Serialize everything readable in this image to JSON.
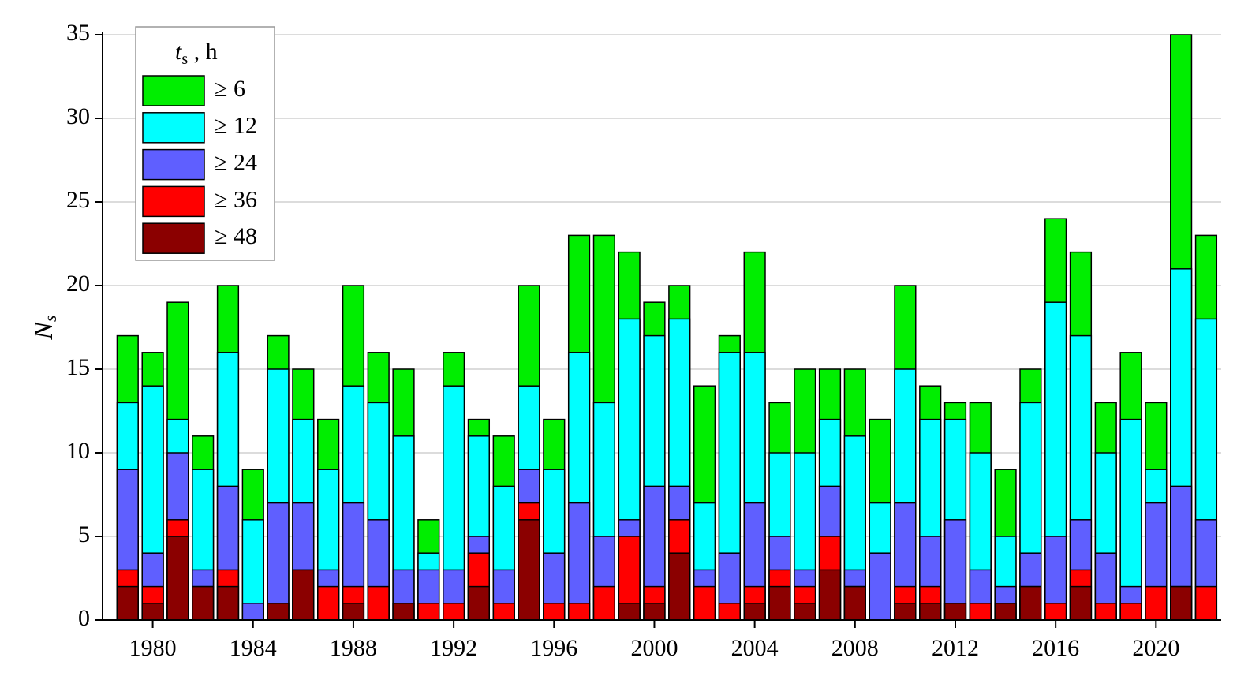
{
  "chart_data": {
    "type": "overlapping_bar",
    "y_label": {
      "symbol": "N",
      "subscript": "s"
    },
    "legend_title": {
      "symbol": "t",
      "subscript": "s",
      "unit": " , h"
    },
    "legend": "upper left",
    "grid": true,
    "x": [
      1979,
      1980,
      1981,
      1982,
      1983,
      1984,
      1985,
      1986,
      1987,
      1988,
      1989,
      1990,
      1991,
      1992,
      1993,
      1994,
      1995,
      1996,
      1997,
      1998,
      1999,
      2000,
      2001,
      2002,
      2003,
      2004,
      2005,
      2006,
      2007,
      2008,
      2009,
      2010,
      2011,
      2012,
      2013,
      2014,
      2015,
      2016,
      2017,
      2018,
      2019,
      2020,
      2021,
      2022
    ],
    "xlim": [
      1978,
      2022.6
    ],
    "xticks": [
      1980,
      1984,
      1988,
      1992,
      1996,
      2000,
      2004,
      2008,
      2012,
      2016,
      2020
    ],
    "ylim": [
      0,
      35
    ],
    "yticks": [
      0,
      5,
      10,
      15,
      20,
      25,
      30,
      35
    ],
    "series": [
      {
        "name": "≥ 6",
        "color": "#00ee00",
        "values": [
          17,
          16,
          19,
          11,
          20,
          9,
          17,
          15,
          12,
          20,
          16,
          15,
          6,
          16,
          12,
          11,
          20,
          12,
          23,
          23,
          22,
          19,
          20,
          14,
          17,
          22,
          13,
          15,
          15,
          15,
          12,
          20,
          14,
          13,
          13,
          9,
          15,
          24,
          22,
          13,
          16,
          13,
          35,
          23
        ]
      },
      {
        "name": "≥ 12",
        "color": "#00ffff",
        "values": [
          13,
          14,
          12,
          9,
          16,
          6,
          15,
          12,
          9,
          14,
          13,
          11,
          4,
          14,
          11,
          8,
          14,
          9,
          16,
          13,
          18,
          17,
          18,
          7,
          16,
          16,
          10,
          10,
          12,
          11,
          7,
          15,
          12,
          12,
          10,
          5,
          13,
          19,
          17,
          10,
          12,
          9,
          21,
          18
        ]
      },
      {
        "name": "≥ 24",
        "color": "#5f5fff",
        "values": [
          9,
          4,
          10,
          3,
          8,
          1,
          7,
          7,
          3,
          7,
          6,
          3,
          3,
          3,
          5,
          3,
          9,
          4,
          7,
          5,
          6,
          8,
          8,
          3,
          4,
          7,
          5,
          3,
          8,
          3,
          4,
          7,
          5,
          6,
          3,
          2,
          4,
          5,
          6,
          4,
          2,
          7,
          8,
          6
        ]
      },
      {
        "name": "≥ 36",
        "color": "#ff0000",
        "values": [
          3,
          2,
          6,
          2,
          3,
          0,
          1,
          3,
          2,
          2,
          2,
          1,
          1,
          1,
          4,
          1,
          7,
          1,
          1,
          2,
          5,
          2,
          6,
          2,
          1,
          2,
          3,
          2,
          5,
          2,
          0,
          2,
          2,
          1,
          1,
          1,
          2,
          1,
          3,
          1,
          1,
          2,
          2,
          2
        ]
      },
      {
        "name": "≥ 48",
        "color": "#8b0000",
        "values": [
          2,
          1,
          5,
          2,
          2,
          0,
          1,
          3,
          0,
          1,
          0,
          1,
          0,
          0,
          2,
          0,
          6,
          0,
          0,
          0,
          1,
          1,
          4,
          0,
          0,
          1,
          2,
          1,
          3,
          2,
          0,
          1,
          1,
          1,
          0,
          1,
          2,
          0,
          2,
          0,
          0,
          0,
          2,
          0
        ]
      }
    ]
  }
}
